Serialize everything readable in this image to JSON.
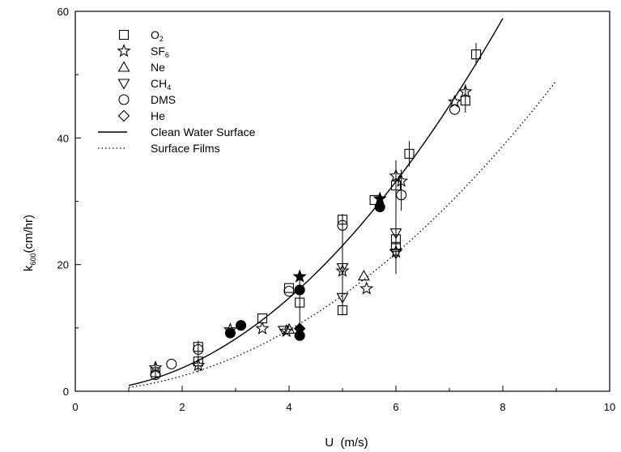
{
  "chart_data": {
    "type": "scatter",
    "title": "",
    "xlabel": "U  (m/s)",
    "ylabel_main": "k",
    "ylabel_sub": "600",
    "ylabel_rest": "(cm/hr)",
    "xlim": [
      0,
      10
    ],
    "ylim": [
      0,
      60
    ],
    "x_ticks": [
      0,
      2,
      4,
      6,
      8,
      10
    ],
    "y_ticks": [
      0,
      20,
      40,
      60
    ],
    "grid": false,
    "legend_position": "top-left",
    "legend": [
      {
        "marker": "square",
        "label": "O",
        "sub": "2"
      },
      {
        "marker": "star",
        "label": "SF",
        "sub": "6"
      },
      {
        "marker": "triangle-up",
        "label": "Ne",
        "sub": ""
      },
      {
        "marker": "triangle-down",
        "label": "CH",
        "sub": "4"
      },
      {
        "marker": "circle",
        "label": "DMS",
        "sub": ""
      },
      {
        "marker": "diamond",
        "label": "He",
        "sub": ""
      },
      {
        "marker": "line-solid",
        "label": "Clean Water Surface",
        "sub": ""
      },
      {
        "marker": "line-dotted",
        "label": "Surface Films",
        "sub": ""
      }
    ],
    "curves": [
      {
        "name": "Clean Water Surface",
        "style": "solid",
        "a": 0.92,
        "x_range": [
          1,
          8
        ]
      },
      {
        "name": "Surface Films",
        "style": "dotted",
        "a": 0.605,
        "x_range": [
          1,
          9
        ]
      }
    ],
    "points": [
      {
        "m": "square",
        "f": false,
        "x": 1.5,
        "y": 3.0
      },
      {
        "m": "star",
        "f": false,
        "x": 1.5,
        "y": 3.7
      },
      {
        "m": "circle",
        "f": false,
        "x": 1.5,
        "y": 2.6
      },
      {
        "m": "circle",
        "f": false,
        "x": 1.8,
        "y": 4.3
      },
      {
        "m": "square",
        "f": false,
        "x": 2.3,
        "y": 7.0
      },
      {
        "m": "circle",
        "f": false,
        "x": 2.3,
        "y": 6.6
      },
      {
        "m": "square",
        "f": false,
        "x": 2.3,
        "y": 4.7
      },
      {
        "m": "star",
        "f": false,
        "x": 2.3,
        "y": 4.1
      },
      {
        "m": "star",
        "f": false,
        "x": 2.9,
        "y": 9.7
      },
      {
        "m": "circle",
        "f": true,
        "x": 2.9,
        "y": 9.2
      },
      {
        "m": "circle",
        "f": true,
        "x": 3.1,
        "y": 10.4
      },
      {
        "m": "square",
        "f": false,
        "x": 3.5,
        "y": 11.5
      },
      {
        "m": "star",
        "f": false,
        "x": 3.5,
        "y": 9.9
      },
      {
        "m": "triangle-down",
        "f": false,
        "x": 3.9,
        "y": 9.6
      },
      {
        "m": "star",
        "f": false,
        "x": 3.95,
        "y": 9.5
      },
      {
        "m": "triangle-up",
        "f": false,
        "x": 4.0,
        "y": 9.8
      },
      {
        "m": "square",
        "f": false,
        "x": 4.0,
        "y": 16.3
      },
      {
        "m": "circle",
        "f": false,
        "x": 4.0,
        "y": 15.8
      },
      {
        "m": "star",
        "f": true,
        "x": 4.2,
        "y": 18.1
      },
      {
        "m": "circle",
        "f": true,
        "x": 4.2,
        "y": 16.0
      },
      {
        "m": "square",
        "f": false,
        "x": 4.2,
        "y": 14.0
      },
      {
        "m": "diamond",
        "f": true,
        "x": 4.2,
        "y": 9.9
      },
      {
        "m": "circle",
        "f": true,
        "x": 4.2,
        "y": 8.8
      },
      {
        "m": "square",
        "f": false,
        "x": 5.0,
        "y": 27.1
      },
      {
        "m": "circle",
        "f": false,
        "x": 5.0,
        "y": 26.2
      },
      {
        "m": "triangle-down",
        "f": false,
        "x": 5.0,
        "y": 19.5
      },
      {
        "m": "star",
        "f": false,
        "x": 5.0,
        "y": 19.0
      },
      {
        "m": "triangle-down",
        "f": false,
        "x": 5.0,
        "y": 14.8
      },
      {
        "m": "square",
        "f": false,
        "x": 5.0,
        "y": 12.8
      },
      {
        "m": "triangle-up",
        "f": false,
        "x": 5.4,
        "y": 18.2
      },
      {
        "m": "star",
        "f": false,
        "x": 5.45,
        "y": 16.2
      },
      {
        "m": "square",
        "f": false,
        "x": 5.6,
        "y": 30.2
      },
      {
        "m": "star",
        "f": true,
        "x": 5.7,
        "y": 30.4
      },
      {
        "m": "circle",
        "f": true,
        "x": 5.7,
        "y": 29.1
      },
      {
        "m": "star",
        "f": false,
        "x": 6.0,
        "y": 34.0
      },
      {
        "m": "square",
        "f": false,
        "x": 6.0,
        "y": 32.5
      },
      {
        "m": "triangle-down",
        "f": false,
        "x": 6.0,
        "y": 25.0
      },
      {
        "m": "square",
        "f": false,
        "x": 6.0,
        "y": 24.0
      },
      {
        "m": "square",
        "f": false,
        "x": 6.0,
        "y": 22.8
      },
      {
        "m": "star",
        "f": false,
        "x": 6.0,
        "y": 22.0
      },
      {
        "m": "triangle-down",
        "f": false,
        "x": 6.0,
        "y": 21.8
      },
      {
        "m": "star",
        "f": false,
        "x": 6.1,
        "y": 33.2
      },
      {
        "m": "circle",
        "f": false,
        "x": 6.1,
        "y": 31.0
      },
      {
        "m": "square",
        "f": false,
        "x": 6.25,
        "y": 37.5
      },
      {
        "m": "star",
        "f": false,
        "x": 7.1,
        "y": 45.7
      },
      {
        "m": "circle",
        "f": false,
        "x": 7.1,
        "y": 44.5
      },
      {
        "m": "star",
        "f": false,
        "x": 7.3,
        "y": 47.3
      },
      {
        "m": "square",
        "f": false,
        "x": 7.3,
        "y": 45.9
      },
      {
        "m": "square",
        "f": false,
        "x": 7.5,
        "y": 53.2
      }
    ],
    "error_bars": [
      {
        "x": 1.5,
        "y0": 2.0,
        "y1": 4.5
      },
      {
        "x": 2.3,
        "y0": 3.0,
        "y1": 8.0
      },
      {
        "x": 4.2,
        "y0": 8.0,
        "y1": 18.5
      },
      {
        "x": 5.0,
        "y0": 12.0,
        "y1": 28.0
      },
      {
        "x": 6.0,
        "y0": 18.5,
        "y1": 36.5
      },
      {
        "x": 6.1,
        "y0": 28.5,
        "y1": 35.0
      },
      {
        "x": 6.25,
        "y0": 35.5,
        "y1": 39.5
      },
      {
        "x": 7.3,
        "y0": 44.0,
        "y1": 48.5
      },
      {
        "x": 7.5,
        "y0": 51.5,
        "y1": 55.0
      }
    ]
  }
}
